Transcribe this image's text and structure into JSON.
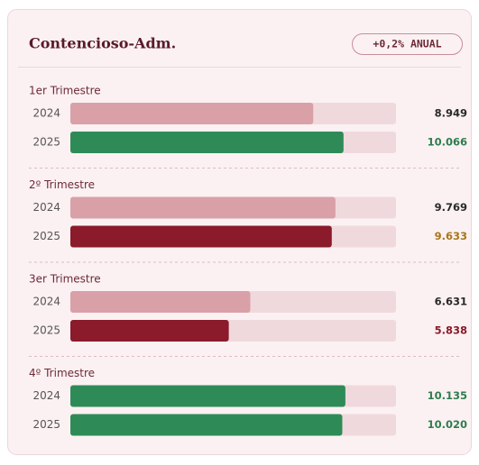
{
  "chart_data": {
    "type": "bar",
    "title": "Contencioso-Adm.",
    "badge": "+0,2% ANUAL",
    "xlim": [
      0,
      12000
    ],
    "groups": [
      {
        "label": "1er Trimestre",
        "rows": [
          {
            "year": "2024",
            "value": 8949,
            "value_label": "8.949",
            "color": "#d9a0a8",
            "label_color": "#2a2a2a"
          },
          {
            "year": "2025",
            "value": 10066,
            "value_label": "10.066",
            "color": "#2e8b57",
            "label_color": "#2e7d4f"
          }
        ]
      },
      {
        "label": "2º Trimestre",
        "rows": [
          {
            "year": "2024",
            "value": 9769,
            "value_label": "9.769",
            "color": "#d9a0a8",
            "label_color": "#2a2a2a"
          },
          {
            "year": "2025",
            "value": 9633,
            "value_label": "9.633",
            "color": "#8b1a2b",
            "label_color": "#a8761c"
          }
        ]
      },
      {
        "label": "3er Trimestre",
        "rows": [
          {
            "year": "2024",
            "value": 6631,
            "value_label": "6.631",
            "color": "#d9a0a8",
            "label_color": "#2a2a2a"
          },
          {
            "year": "2025",
            "value": 5838,
            "value_label": "5.838",
            "color": "#8b1a2b",
            "label_color": "#8b1a2b"
          }
        ]
      },
      {
        "label": "4º Trimestre",
        "rows": [
          {
            "year": "2024",
            "value": 10135,
            "value_label": "10.135",
            "color": "#2e8b57",
            "label_color": "#2e7d4f"
          },
          {
            "year": "2025",
            "value": 10020,
            "value_label": "10.020",
            "color": "#2e8b57",
            "label_color": "#2e7d4f"
          }
        ]
      }
    ]
  }
}
